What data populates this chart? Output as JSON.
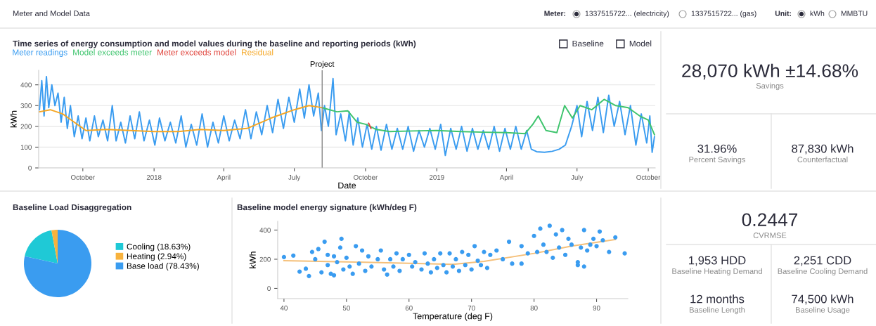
{
  "chart_data": [
    {
      "type": "other",
      "annotations": [
        "Meter and Model Data",
        "Meter:",
        "1337515722... (electricity)",
        "1337515722... (gas)",
        "Unit:",
        "kWh",
        "MMBTU"
      ]
    },
    {
      "type": "line",
      "title": "Time series of energy consumption and model values during the baseline and reporting periods (kWh)",
      "xlabel": "Date",
      "ylabel": "kWh",
      "series": [
        {
          "name": "Meter readings",
          "color": "#3a9cf0",
          "x": [
            "2017-08-06",
            "2017-08-09",
            "2017-08-12",
            "2017-08-15",
            "2017-08-18",
            "2017-08-22",
            "2017-08-26",
            "2017-08-30",
            "2017-09-03",
            "2017-09-07",
            "2017-09-11",
            "2017-09-15",
            "2017-09-20",
            "2017-09-25",
            "2017-09-30",
            "2017-10-05",
            "2017-10-10",
            "2017-10-16",
            "2017-10-21",
            "2017-10-27",
            "2017-11-02",
            "2017-11-08",
            "2017-11-13",
            "2017-11-19",
            "2017-11-25",
            "2017-12-01",
            "2017-12-07",
            "2017-12-13",
            "2017-12-19",
            "2017-12-26",
            "2018-01-02",
            "2018-01-08",
            "2018-01-15",
            "2018-01-22",
            "2018-01-29",
            "2018-02-05",
            "2018-02-11",
            "2018-02-18",
            "2018-02-25",
            "2018-03-04",
            "2018-03-11",
            "2018-03-18",
            "2018-03-25",
            "2018-04-01",
            "2018-04-08",
            "2018-04-15",
            "2018-04-22",
            "2018-04-29",
            "2018-05-06",
            "2018-05-13",
            "2018-05-20",
            "2018-05-27",
            "2018-06-03",
            "2018-06-10",
            "2018-06-17",
            "2018-06-24",
            "2018-07-01",
            "2018-07-08",
            "2018-07-14",
            "2018-07-20",
            "2018-07-26",
            "2018-08-01",
            "2018-08-05",
            "2018-08-09",
            "2018-08-14",
            "2018-08-20",
            "2018-08-24",
            "2018-08-30",
            "2018-09-05",
            "2018-09-10",
            "2018-09-15",
            "2018-09-21",
            "2018-09-27",
            "2018-10-03",
            "2018-10-09",
            "2018-10-15",
            "2018-10-21",
            "2018-10-28",
            "2018-11-04",
            "2018-11-11",
            "2018-11-18",
            "2018-11-25",
            "2018-12-02",
            "2018-12-09",
            "2018-12-16",
            "2018-12-23",
            "2018-12-30",
            "2019-01-06",
            "2019-01-12",
            "2019-01-19",
            "2019-01-26",
            "2019-02-02",
            "2019-02-09",
            "2019-02-16",
            "2019-02-23",
            "2019-03-02",
            "2019-03-09",
            "2019-03-16",
            "2019-03-23",
            "2019-03-30",
            "2019-04-06",
            "2019-04-13",
            "2019-04-20",
            "2019-04-27",
            "2019-05-03",
            "2019-05-10",
            "2019-05-20",
            "2019-05-30",
            "2019-06-08",
            "2019-06-16",
            "2019-06-24",
            "2019-07-01",
            "2019-07-07",
            "2019-07-14",
            "2019-07-21",
            "2019-07-28",
            "2019-08-04",
            "2019-08-11",
            "2019-08-18",
            "2019-08-25",
            "2019-09-01",
            "2019-09-08",
            "2019-09-15",
            "2019-09-22",
            "2019-09-29",
            "2019-10-03",
            "2019-10-06",
            "2019-10-09"
          ],
          "values": [
            280,
            420,
            250,
            440,
            290,
            400,
            300,
            360,
            220,
            340,
            190,
            300,
            150,
            250,
            140,
            240,
            130,
            250,
            150,
            230,
            130,
            300,
            130,
            220,
            120,
            250,
            140,
            270,
            130,
            230,
            110,
            240,
            130,
            220,
            120,
            250,
            100,
            210,
            110,
            260,
            100,
            220,
            120,
            250,
            130,
            230,
            140,
            280,
            140,
            270,
            160,
            300,
            170,
            330,
            190,
            340,
            220,
            380,
            240,
            400,
            250,
            360,
            180,
            300,
            200,
            430,
            160,
            260,
            130,
            270,
            110,
            240,
            100,
            210,
            90,
            200,
            85,
            210,
            90,
            190,
            90,
            200,
            80,
            180,
            100,
            190,
            90,
            210,
            60,
            190,
            90,
            200,
            80,
            190,
            90,
            180,
            90,
            200,
            80,
            190,
            90,
            200,
            90,
            180,
            90,
            78,
            75,
            80,
            90,
            110,
            200,
            300,
            150,
            320,
            180,
            340,
            170,
            350,
            200,
            320,
            160,
            300,
            110,
            260,
            120,
            250,
            75,
            150
          ]
        },
        {
          "name": "Model exceeds meter",
          "color": "#3ec46d",
          "x": [
            "2018-08-06",
            "2018-08-25",
            "2018-09-08",
            "2018-09-20",
            "2018-10-01",
            "2018-10-15",
            "2018-11-01",
            "2018-12-01",
            "2019-01-01",
            "2019-02-01",
            "2019-03-01",
            "2019-04-01",
            "2019-04-25",
            "2019-05-05",
            "2019-05-12",
            "2019-05-22",
            "2019-06-05",
            "2019-06-15",
            "2019-06-25",
            "2019-07-05",
            "2019-07-20",
            "2019-08-05",
            "2019-08-20",
            "2019-09-05",
            "2019-09-20",
            "2019-10-01",
            "2019-10-09"
          ],
          "values": [
            290,
            270,
            275,
            220,
            210,
            185,
            175,
            178,
            180,
            175,
            172,
            170,
            165,
            210,
            250,
            180,
            170,
            300,
            240,
            300,
            280,
            330,
            300,
            290,
            250,
            230,
            160
          ]
        },
        {
          "name": "Meter exceeds model",
          "color": "#e0443c",
          "x": [
            "2018-10-05",
            "2018-10-08"
          ],
          "values": [
            215,
            190
          ]
        },
        {
          "name": "Residual",
          "color": "#f5a623",
          "x": [
            "2017-08-06",
            "2017-08-20",
            "2017-09-05",
            "2017-09-20",
            "2017-10-05",
            "2017-11-01",
            "2017-12-01",
            "2018-01-01",
            "2018-02-01",
            "2018-03-01",
            "2018-04-01",
            "2018-05-01",
            "2018-06-01",
            "2018-07-01",
            "2018-07-20",
            "2018-08-06"
          ],
          "values": [
            270,
            280,
            260,
            220,
            180,
            185,
            180,
            175,
            175,
            185,
            180,
            190,
            240,
            280,
            300,
            290
          ]
        }
      ],
      "xlim": [
        "2017-08-05",
        "2019-10-10"
      ],
      "xticks": [
        {
          "value": "2017-10-01",
          "label": "October"
        },
        {
          "value": "2018-01-01",
          "label": "2018"
        },
        {
          "value": "2018-04-01",
          "label": "April"
        },
        {
          "value": "2018-07-01",
          "label": "July"
        },
        {
          "value": "2018-10-01",
          "label": "October"
        },
        {
          "value": "2019-01-01",
          "label": "2019"
        },
        {
          "value": "2019-04-01",
          "label": "April"
        },
        {
          "value": "2019-07-01",
          "label": "July"
        },
        {
          "value": "2019-10-01",
          "label": "October"
        }
      ],
      "ylim": [
        0,
        470
      ],
      "yticks": [
        0,
        100,
        200,
        300,
        400
      ],
      "grid": "y",
      "legend": "top left",
      "ref_lines": [
        {
          "axis": "x",
          "value": "2018-08-06",
          "label": "Project",
          "color": "#888888"
        }
      ],
      "annotations": [
        "Baseline",
        "Model"
      ]
    },
    {
      "type": "other",
      "annotations": [
        "28,070 kWh ±14.68%",
        "Savings",
        "31.96%",
        "Percent Savings",
        "87,830 kWh",
        "Counterfactual"
      ]
    },
    {
      "type": "pie",
      "title": "Baseline Load Disaggregation",
      "categories": [
        "Cooling (18.63%)",
        "Heating (2.94%)",
        "Base load (78.43%)"
      ],
      "values": [
        18.63,
        2.94,
        78.43
      ],
      "colors": [
        "#1fc9d6",
        "#f8b23d",
        "#3a9cf0"
      ],
      "legend": "right"
    },
    {
      "type": "scatter",
      "title": "Baseline model energy signature (kWh/deg F)",
      "xlabel": "Temperature (deg F)",
      "ylabel": "kWh",
      "series": [
        {
          "marker": "circle",
          "color": "#3a9cf0",
          "x": [
            40,
            41.5,
            42.5,
            43.5,
            44,
            44.5,
            45,
            45.5,
            46,
            46.5,
            47,
            47,
            47.5,
            48,
            48,
            48.5,
            49,
            49.2,
            49.5,
            50,
            50.5,
            51,
            51.5,
            52,
            52.5,
            53,
            53.5,
            54,
            55,
            55.5,
            56,
            56.5,
            57,
            57.5,
            58,
            58.5,
            59,
            60,
            60.5,
            61,
            62,
            62.5,
            63,
            63.5,
            64,
            64.5,
            65,
            65.5,
            66,
            66.5,
            67,
            67.5,
            68,
            68.5,
            69,
            69.5,
            70,
            70.5,
            71,
            71.5,
            72,
            72.5,
            73,
            74,
            75,
            76,
            76.5,
            78,
            78,
            79,
            80,
            80.5,
            81,
            81.5,
            82,
            82.5,
            83,
            83.5,
            84,
            84.5,
            85,
            85.5,
            86,
            87,
            87,
            87.5,
            88,
            88,
            88.5,
            89,
            89.5,
            90,
            90.5,
            91,
            92,
            93,
            94.5
          ],
          "values": [
            215,
            225,
            115,
            135,
            85,
            250,
            200,
            270,
            110,
            320,
            230,
            160,
            100,
            220,
            90,
            180,
            280,
            340,
            130,
            210,
            150,
            100,
            290,
            170,
            260,
            120,
            220,
            150,
            200,
            260,
            130,
            95,
            200,
            150,
            240,
            120,
            200,
            230,
            150,
            180,
            130,
            240,
            170,
            110,
            200,
            140,
            240,
            160,
            110,
            240,
            150,
            200,
            120,
            250,
            160,
            230,
            130,
            290,
            190,
            160,
            250,
            140,
            230,
            260,
            200,
            320,
            170,
            290,
            170,
            240,
            360,
            250,
            410,
            300,
            250,
            430,
            210,
            370,
            280,
            400,
            230,
            340,
            300,
            180,
            160,
            280,
            400,
            150,
            260,
            300,
            340,
            290,
            390,
            330,
            250,
            350,
            240
          ]
        },
        {
          "type": "line",
          "marker": "none",
          "color": "#f5c07a",
          "x": [
            40,
            50,
            60,
            67,
            72,
            80,
            86,
            93
          ],
          "values": [
            190,
            182,
            172,
            165,
            185,
            240,
            290,
            335
          ]
        }
      ],
      "xlim": [
        39,
        95
      ],
      "xticks": [
        40,
        50,
        60,
        70,
        80,
        90
      ],
      "ylim": [
        -70,
        460
      ],
      "yticks": [
        0,
        200,
        400
      ]
    },
    {
      "type": "other",
      "annotations": [
        "0.2447",
        "CVRMSE",
        "1,953 HDD",
        "Baseline Heating Demand",
        "2,251 CDD",
        "Baseline Cooling Demand",
        "12 months",
        "Baseline Length",
        "74,500 kWh",
        "Baseline Usage"
      ]
    }
  ]
}
